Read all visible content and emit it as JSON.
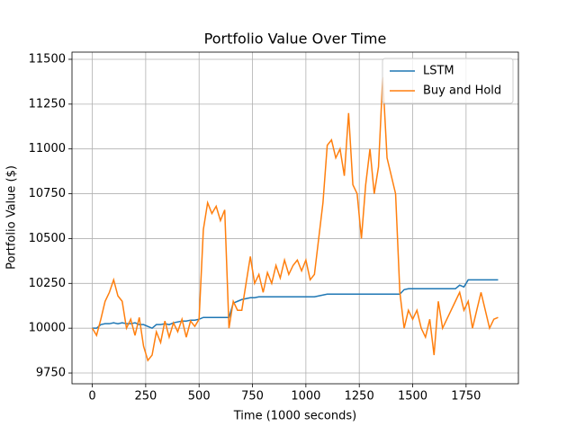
{
  "chart_data": {
    "type": "line",
    "title": "Portfolio Value Over Time",
    "xlabel": "Time (1000 seconds)",
    "ylabel": "Portfolio Value ($)",
    "x": [
      0,
      20,
      40,
      60,
      80,
      100,
      120,
      140,
      160,
      180,
      200,
      220,
      240,
      260,
      280,
      300,
      320,
      340,
      360,
      380,
      400,
      420,
      440,
      460,
      480,
      500,
      520,
      540,
      560,
      580,
      600,
      620,
      640,
      660,
      680,
      700,
      720,
      740,
      760,
      780,
      800,
      820,
      840,
      860,
      880,
      900,
      920,
      940,
      960,
      980,
      1000,
      1020,
      1040,
      1060,
      1080,
      1100,
      1120,
      1140,
      1160,
      1180,
      1200,
      1220,
      1240,
      1260,
      1280,
      1300,
      1320,
      1340,
      1360,
      1380,
      1400,
      1420,
      1440,
      1460,
      1480,
      1500,
      1520,
      1540,
      1560,
      1580,
      1600,
      1620,
      1640,
      1660,
      1680,
      1700,
      1720,
      1740,
      1760,
      1780,
      1800,
      1820,
      1840,
      1860,
      1880,
      1900
    ],
    "series": [
      {
        "name": "LSTM",
        "color": "#1f77b4",
        "values": [
          10000,
          10000,
          10020,
          10025,
          10025,
          10030,
          10025,
          10030,
          10025,
          10025,
          10030,
          10020,
          10020,
          10010,
          10000,
          10020,
          10020,
          10025,
          10020,
          10030,
          10035,
          10040,
          10040,
          10045,
          10045,
          10050,
          10060,
          10060,
          10060,
          10060,
          10060,
          10060,
          10060,
          10140,
          10150,
          10160,
          10165,
          10170,
          10170,
          10175,
          10175,
          10175,
          10175,
          10175,
          10175,
          10175,
          10175,
          10175,
          10175,
          10175,
          10175,
          10175,
          10175,
          10180,
          10185,
          10190,
          10190,
          10190,
          10190,
          10190,
          10190,
          10190,
          10190,
          10190,
          10190,
          10190,
          10190,
          10190,
          10190,
          10190,
          10190,
          10190,
          10190,
          10215,
          10220,
          10220,
          10220,
          10220,
          10220,
          10220,
          10220,
          10220,
          10220,
          10220,
          10220,
          10220,
          10240,
          10230,
          10270,
          10270,
          10270,
          10270,
          10270,
          10270,
          10270,
          10270
        ]
      },
      {
        "name": "Buy and Hold",
        "color": "#ff7f0e",
        "values": [
          10000,
          9960,
          10050,
          10150,
          10200,
          10270,
          10180,
          10150,
          10000,
          10050,
          9960,
          10060,
          9900,
          9820,
          9850,
          9980,
          9920,
          10040,
          9950,
          10030,
          9980,
          10050,
          9950,
          10040,
          10010,
          10050,
          10550,
          10700,
          10640,
          10680,
          10600,
          10660,
          10000,
          10150,
          10100,
          10100,
          10250,
          10400,
          10250,
          10300,
          10200,
          10310,
          10250,
          10350,
          10280,
          10380,
          10300,
          10350,
          10380,
          10320,
          10380,
          10270,
          10300,
          10500,
          10700,
          11020,
          11050,
          10950,
          11000,
          10850,
          11200,
          10800,
          10750,
          10500,
          10800,
          11000,
          10750,
          10900,
          11400,
          10950,
          10850,
          10750,
          10200,
          10000,
          10100,
          10050,
          10100,
          10000,
          9950,
          10050,
          9850,
          10150,
          10000,
          10050,
          10100,
          10150,
          10200,
          10100,
          10150,
          10000,
          10100,
          10200,
          10100,
          10000,
          10050,
          10060
        ]
      }
    ],
    "xlim": [
      -95,
      1995
    ],
    "xticks": [
      0,
      250,
      500,
      750,
      1000,
      1250,
      1500,
      1750
    ],
    "ylim": [
      9690,
      11540
    ],
    "yticks": [
      9750,
      10000,
      10250,
      10500,
      10750,
      11000,
      11250,
      11500
    ],
    "grid": true,
    "legend": "upper right"
  }
}
